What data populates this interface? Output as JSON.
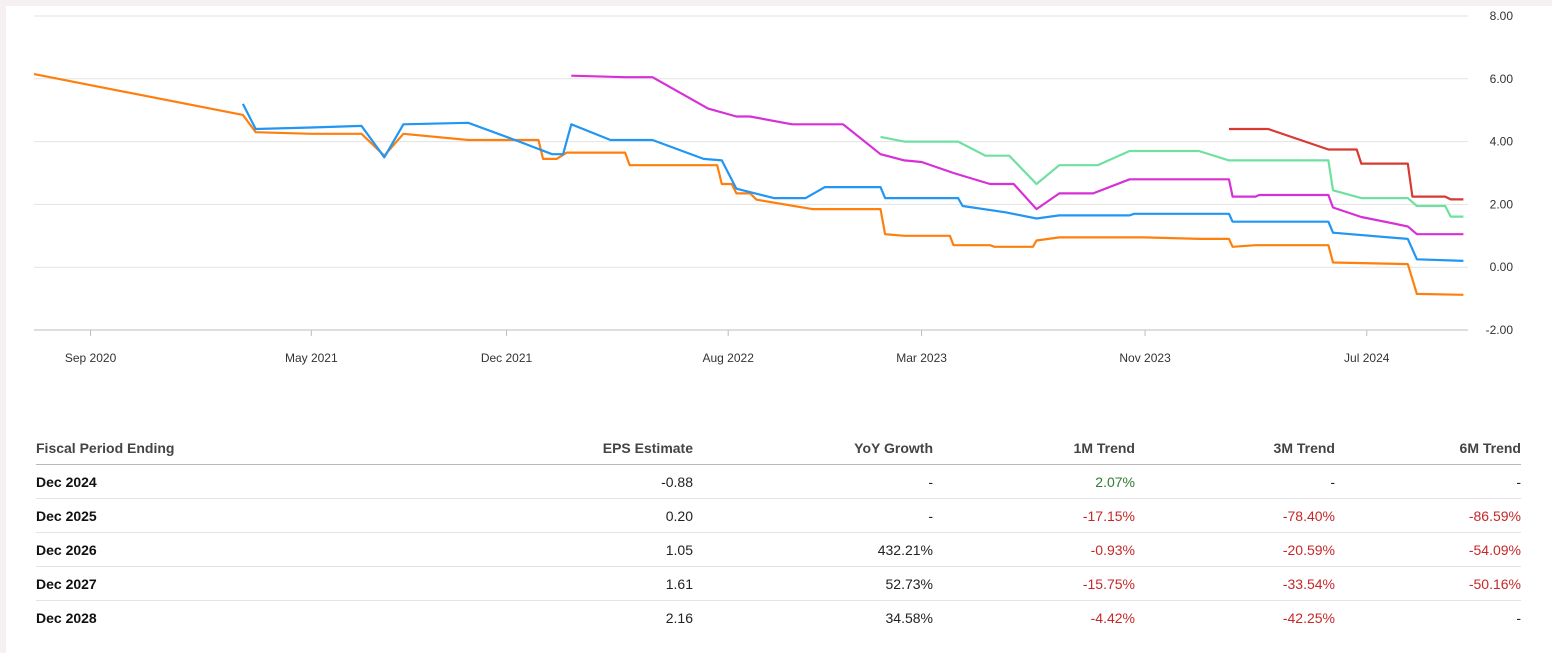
{
  "chart_data": {
    "type": "line",
    "title": "",
    "xlabel": "",
    "ylabel": "",
    "ylim": [
      -2,
      8
    ],
    "y_ticks": [
      "8.00",
      "6.00",
      "4.00",
      "2.00",
      "0.00",
      "-2.00"
    ],
    "y_tick_values": [
      8,
      6,
      4,
      2,
      0,
      -2
    ],
    "y_axis_side": "right",
    "grid": true,
    "legend": "none",
    "x_range": [
      "2020-07-01",
      "2024-10-20"
    ],
    "x_ticks": [
      {
        "date": "2020-09-01",
        "label": "Sep 2020"
      },
      {
        "date": "2021-05-01",
        "label": "May 2021"
      },
      {
        "date": "2021-12-01",
        "label": "Dec 2021"
      },
      {
        "date": "2022-08-01",
        "label": "Aug 2022"
      },
      {
        "date": "2023-03-01",
        "label": "Mar 2023"
      },
      {
        "date": "2023-11-01",
        "label": "Nov 2023"
      },
      {
        "date": "2024-07-01",
        "label": "Jul 2024"
      }
    ],
    "series": [
      {
        "color": "#ff7f0e",
        "stepped": true,
        "points": [
          [
            "2020-07-01",
            6.15
          ],
          [
            "2021-02-15",
            4.85
          ],
          [
            "2021-03-01",
            4.3
          ],
          [
            "2021-05-01",
            4.25
          ],
          [
            "2021-06-25",
            4.25
          ],
          [
            "2021-07-20",
            3.55
          ],
          [
            "2021-08-10",
            4.25
          ],
          [
            "2021-10-20",
            4.05
          ],
          [
            "2022-01-05",
            4.05
          ],
          [
            "2022-01-10",
            3.45
          ],
          [
            "2022-01-25",
            3.45
          ],
          [
            "2022-02-05",
            3.65
          ],
          [
            "2022-04-10",
            3.65
          ],
          [
            "2022-04-15",
            3.25
          ],
          [
            "2022-05-15",
            3.25
          ],
          [
            "2022-05-20",
            3.25
          ],
          [
            "2022-07-20",
            3.25
          ],
          [
            "2022-07-25",
            2.65
          ],
          [
            "2022-08-05",
            2.65
          ],
          [
            "2022-08-10",
            2.35
          ],
          [
            "2022-08-25",
            2.35
          ],
          [
            "2022-09-01",
            2.15
          ],
          [
            "2022-11-01",
            1.85
          ],
          [
            "2022-12-01",
            1.85
          ],
          [
            "2023-01-15",
            1.85
          ],
          [
            "2023-01-20",
            1.05
          ],
          [
            "2023-02-10",
            1.0
          ],
          [
            "2023-04-01",
            1.0
          ],
          [
            "2023-04-05",
            0.7
          ],
          [
            "2023-05-15",
            0.7
          ],
          [
            "2023-05-20",
            0.65
          ],
          [
            "2023-07-01",
            0.65
          ],
          [
            "2023-07-05",
            0.85
          ],
          [
            "2023-07-30",
            0.95
          ],
          [
            "2023-10-31",
            0.95
          ],
          [
            "2023-12-31",
            0.9
          ],
          [
            "2024-02-01",
            0.9
          ],
          [
            "2024-02-05",
            0.65
          ],
          [
            "2024-03-01",
            0.7
          ],
          [
            "2024-05-20",
            0.7
          ],
          [
            "2024-05-25",
            0.15
          ],
          [
            "2024-08-15",
            0.1
          ],
          [
            "2024-08-25",
            -0.85
          ],
          [
            "2024-10-15",
            -0.88
          ]
        ]
      },
      {
        "color": "#2196f3",
        "stepped": true,
        "points": [
          [
            "2021-02-15",
            5.2
          ],
          [
            "2021-03-01",
            4.4
          ],
          [
            "2021-05-01",
            4.45
          ],
          [
            "2021-06-25",
            4.5
          ],
          [
            "2021-07-20",
            3.5
          ],
          [
            "2021-08-10",
            4.55
          ],
          [
            "2021-10-20",
            4.6
          ],
          [
            "2021-12-15",
            4.0
          ],
          [
            "2022-01-20",
            3.6
          ],
          [
            "2022-02-01",
            3.6
          ],
          [
            "2022-02-10",
            4.55
          ],
          [
            "2022-03-25",
            4.05
          ],
          [
            "2022-05-10",
            4.05
          ],
          [
            "2022-07-05",
            3.45
          ],
          [
            "2022-07-25",
            3.4
          ],
          [
            "2022-08-10",
            2.5
          ],
          [
            "2022-09-20",
            2.2
          ],
          [
            "2022-10-25",
            2.2
          ],
          [
            "2022-11-15",
            2.55
          ],
          [
            "2023-01-15",
            2.55
          ],
          [
            "2023-01-20",
            2.2
          ],
          [
            "2023-02-10",
            2.2
          ],
          [
            "2023-04-10",
            2.2
          ],
          [
            "2023-04-15",
            1.95
          ],
          [
            "2023-06-01",
            1.75
          ],
          [
            "2023-07-05",
            1.55
          ],
          [
            "2023-07-30",
            1.65
          ],
          [
            "2023-10-15",
            1.65
          ],
          [
            "2023-10-20",
            1.7
          ],
          [
            "2024-02-01",
            1.7
          ],
          [
            "2024-02-05",
            1.45
          ],
          [
            "2024-05-20",
            1.45
          ],
          [
            "2024-05-25",
            1.1
          ],
          [
            "2024-08-15",
            0.9
          ],
          [
            "2024-08-25",
            0.25
          ],
          [
            "2024-10-15",
            0.2
          ]
        ]
      },
      {
        "color": "#d630d6",
        "stepped": true,
        "points": [
          [
            "2022-02-10",
            6.1
          ],
          [
            "2022-04-10",
            6.05
          ],
          [
            "2022-05-10",
            6.05
          ],
          [
            "2022-07-10",
            5.05
          ],
          [
            "2022-08-10",
            4.8
          ],
          [
            "2022-08-25",
            4.8
          ],
          [
            "2022-10-10",
            4.55
          ],
          [
            "2022-12-05",
            4.55
          ],
          [
            "2023-01-15",
            3.6
          ],
          [
            "2023-02-10",
            3.4
          ],
          [
            "2023-03-01",
            3.35
          ],
          [
            "2023-04-05",
            3.0
          ],
          [
            "2023-05-15",
            2.65
          ],
          [
            "2023-06-10",
            2.65
          ],
          [
            "2023-07-05",
            1.85
          ],
          [
            "2023-07-30",
            2.35
          ],
          [
            "2023-09-05",
            2.35
          ],
          [
            "2023-10-15",
            2.8
          ],
          [
            "2024-02-01",
            2.8
          ],
          [
            "2024-02-05",
            2.25
          ],
          [
            "2024-03-01",
            2.25
          ],
          [
            "2024-03-05",
            2.3
          ],
          [
            "2024-05-20",
            2.3
          ],
          [
            "2024-05-25",
            1.9
          ],
          [
            "2024-06-25",
            1.6
          ],
          [
            "2024-08-15",
            1.3
          ],
          [
            "2024-08-25",
            1.05
          ],
          [
            "2024-10-15",
            1.05
          ]
        ]
      },
      {
        "color": "#6fe0a0",
        "stepped": true,
        "points": [
          [
            "2023-01-15",
            4.15
          ],
          [
            "2023-02-10",
            4.0
          ],
          [
            "2023-04-10",
            4.0
          ],
          [
            "2023-05-10",
            3.55
          ],
          [
            "2023-06-05",
            3.55
          ],
          [
            "2023-07-05",
            2.65
          ],
          [
            "2023-07-30",
            3.25
          ],
          [
            "2023-09-10",
            3.25
          ],
          [
            "2023-10-15",
            3.7
          ],
          [
            "2023-12-30",
            3.7
          ],
          [
            "2024-02-01",
            3.4
          ],
          [
            "2024-05-20",
            3.4
          ],
          [
            "2024-05-25",
            2.45
          ],
          [
            "2024-06-25",
            2.2
          ],
          [
            "2024-08-15",
            2.2
          ],
          [
            "2024-08-25",
            1.95
          ],
          [
            "2024-09-25",
            1.95
          ],
          [
            "2024-10-01",
            1.61
          ],
          [
            "2024-10-15",
            1.61
          ]
        ]
      },
      {
        "color": "#d63a30",
        "stepped": true,
        "points": [
          [
            "2024-02-01",
            4.4
          ],
          [
            "2024-03-15",
            4.4
          ],
          [
            "2024-05-20",
            3.75
          ],
          [
            "2024-06-20",
            3.75
          ],
          [
            "2024-06-25",
            3.3
          ],
          [
            "2024-08-15",
            3.3
          ],
          [
            "2024-08-20",
            2.25
          ],
          [
            "2024-09-25",
            2.25
          ],
          [
            "2024-10-01",
            2.16
          ],
          [
            "2024-10-15",
            2.16
          ]
        ]
      }
    ]
  },
  "table": {
    "headers": [
      "Fiscal Period Ending",
      "EPS Estimate",
      "YoY Growth",
      "1M Trend",
      "3M Trend",
      "6M Trend"
    ],
    "rows": [
      {
        "period": "Dec 2024",
        "eps": "-0.88",
        "yoy": "-",
        "m1": "2.07%",
        "m3": "-",
        "m6": "-"
      },
      {
        "period": "Dec 2025",
        "eps": "0.20",
        "yoy": "-",
        "m1": "-17.15%",
        "m3": "-78.40%",
        "m6": "-86.59%"
      },
      {
        "period": "Dec 2026",
        "eps": "1.05",
        "yoy": "432.21%",
        "m1": "-0.93%",
        "m3": "-20.59%",
        "m6": "-54.09%"
      },
      {
        "period": "Dec 2027",
        "eps": "1.61",
        "yoy": "52.73%",
        "m1": "-15.75%",
        "m3": "-33.54%",
        "m6": "-50.16%"
      },
      {
        "period": "Dec 2028",
        "eps": "2.16",
        "yoy": "34.58%",
        "m1": "-4.42%",
        "m3": "-42.25%",
        "m6": "-"
      }
    ],
    "colors": {
      "positive": "#2e7d32",
      "negative": "#c62828",
      "neutral": "#222222"
    }
  }
}
